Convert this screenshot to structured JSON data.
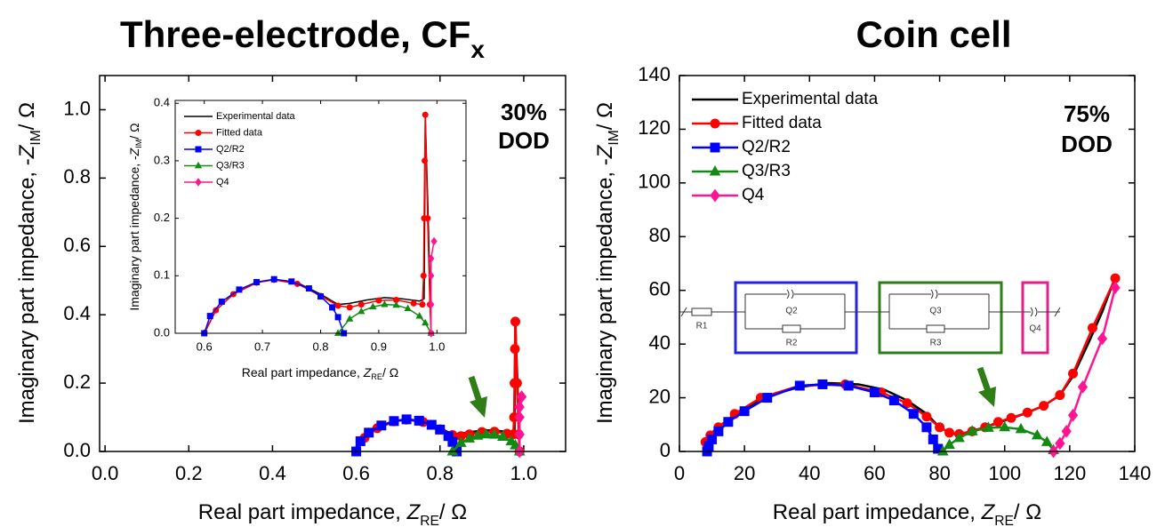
{
  "chart_data": [
    {
      "type": "line",
      "title": "Three-electrode, CF",
      "title_subscript": "x",
      "x_label": {
        "text": "Real part impedance, ",
        "symbol": "Z",
        "subscript": "RE",
        "unit": "/ Ω"
      },
      "y_label": {
        "text": "Imaginary part impedance, -",
        "symbol": "Z",
        "subscript": "IM",
        "unit": "/ Ω"
      },
      "annotation": [
        "30%",
        "DOD"
      ],
      "xlim": [
        -0.013,
        1.1
      ],
      "ylim": [
        0,
        1.1
      ],
      "xticks": [
        {
          "value": 0,
          "label": "0.0"
        },
        0.2,
        0.4,
        0.6,
        0.8,
        {
          "value": 1,
          "label": "1.0"
        }
      ],
      "yticks": [
        {
          "value": 0,
          "label": "0.0"
        },
        0.2,
        0.4,
        0.6,
        0.8,
        {
          "value": 1,
          "label": "1.0"
        }
      ],
      "series": [
        {
          "color": "#000000",
          "x": [
            0.6,
            0.62,
            0.65,
            0.69,
            0.72,
            0.76,
            0.8,
            0.83,
            0.85,
            0.88,
            0.91,
            0.94,
            0.97,
            0.978,
            0.979,
            0.98,
            0.985,
            0.99
          ],
          "values": [
            0,
            0.04,
            0.068,
            0.088,
            0.094,
            0.088,
            0.068,
            0.05,
            0.052,
            0.058,
            0.062,
            0.06,
            0.056,
            0.06,
            0.2,
            0.38,
            0.2,
            0
          ]
        },
        {
          "color": "#ff0000",
          "marker": "circle",
          "x": [
            0.6,
            0.62,
            0.65,
            0.69,
            0.72,
            0.76,
            0.8,
            0.83,
            0.85,
            0.87,
            0.9,
            0.93,
            0.96,
            0.975,
            0.977,
            0.978,
            0.979,
            0.98,
            0.984,
            0.988,
            0.99
          ],
          "values": [
            0,
            0.04,
            0.068,
            0.088,
            0.093,
            0.086,
            0.065,
            0.048,
            0.045,
            0.05,
            0.057,
            0.058,
            0.052,
            0.05,
            0.1,
            0.2,
            0.3,
            0.38,
            0.2,
            0.05,
            0
          ]
        },
        {
          "color": "#0000ff",
          "marker": "square",
          "x": [
            0.6,
            0.61,
            0.63,
            0.66,
            0.69,
            0.72,
            0.75,
            0.78,
            0.8,
            0.82,
            0.83,
            0.84
          ],
          "values": [
            0,
            0.03,
            0.055,
            0.076,
            0.089,
            0.094,
            0.09,
            0.078,
            0.064,
            0.045,
            0.028,
            0
          ]
        },
        {
          "color": "#138a13",
          "marker": "triangle",
          "x": [
            0.83,
            0.85,
            0.87,
            0.89,
            0.91,
            0.93,
            0.95,
            0.97,
            0.98,
            0.99
          ],
          "values": [
            0,
            0.025,
            0.038,
            0.046,
            0.05,
            0.049,
            0.043,
            0.03,
            0.018,
            0
          ]
        },
        {
          "color": "#ff1493",
          "marker": "diamond",
          "x": [
            0.99,
            0.99,
            0.99,
            0.99,
            0.995
          ],
          "values": [
            0,
            0.05,
            0.1,
            0.13,
            0.16
          ]
        }
      ]
    },
    {
      "type": "line",
      "x_label": {
        "text": "Real part impedance, ",
        "symbol": "Z",
        "subscript": "RE",
        "unit": "/ Ω"
      },
      "y_label": {
        "text": "Imaginary part impedance, -",
        "symbol": "Z",
        "subscript": "IM",
        "unit": "/ Ω"
      },
      "legend": "upper left",
      "xlim": [
        0.55,
        1.05
      ],
      "ylim": [
        0,
        0.405
      ],
      "xticks": [
        0.6,
        0.7,
        0.8,
        0.9,
        {
          "value": 1,
          "label": "1.0"
        }
      ],
      "yticks": [
        {
          "value": 0,
          "label": "0.0"
        },
        0.1,
        0.2,
        0.3,
        0.4
      ],
      "series": [
        {
          "name": "Experimental data",
          "color": "#000000",
          "x": [
            0.6,
            0.62,
            0.65,
            0.69,
            0.72,
            0.76,
            0.8,
            0.83,
            0.85,
            0.88,
            0.91,
            0.94,
            0.97,
            0.978,
            0.979,
            0.98,
            0.985,
            0.99
          ],
          "values": [
            0,
            0.04,
            0.068,
            0.088,
            0.094,
            0.088,
            0.068,
            0.05,
            0.052,
            0.058,
            0.062,
            0.06,
            0.056,
            0.06,
            0.2,
            0.38,
            0.2,
            0
          ]
        },
        {
          "name": "Fitted data",
          "color": "#ff0000",
          "marker": "circle",
          "x": [
            0.6,
            0.62,
            0.65,
            0.69,
            0.72,
            0.76,
            0.8,
            0.83,
            0.85,
            0.87,
            0.9,
            0.93,
            0.96,
            0.975,
            0.977,
            0.978,
            0.979,
            0.98,
            0.984,
            0.988,
            0.99
          ],
          "values": [
            0,
            0.04,
            0.068,
            0.088,
            0.093,
            0.086,
            0.065,
            0.048,
            0.045,
            0.05,
            0.057,
            0.058,
            0.052,
            0.05,
            0.1,
            0.2,
            0.3,
            0.38,
            0.2,
            0.05,
            0
          ]
        },
        {
          "name": "Q2/R2",
          "color": "#0000ff",
          "marker": "square",
          "x": [
            0.6,
            0.61,
            0.63,
            0.66,
            0.69,
            0.72,
            0.75,
            0.78,
            0.8,
            0.82,
            0.83,
            0.84
          ],
          "values": [
            0,
            0.03,
            0.055,
            0.076,
            0.089,
            0.094,
            0.09,
            0.078,
            0.064,
            0.045,
            0.028,
            0
          ]
        },
        {
          "name": "Q3/R3",
          "color": "#138a13",
          "marker": "triangle",
          "x": [
            0.83,
            0.85,
            0.87,
            0.89,
            0.91,
            0.93,
            0.95,
            0.97,
            0.98,
            0.99
          ],
          "values": [
            0,
            0.025,
            0.038,
            0.046,
            0.05,
            0.049,
            0.043,
            0.03,
            0.018,
            0
          ]
        },
        {
          "name": "Q4",
          "color": "#ff1493",
          "marker": "diamond",
          "x": [
            0.99,
            0.99,
            0.99,
            0.99,
            0.995
          ],
          "values": [
            0,
            0.05,
            0.1,
            0.13,
            0.16
          ]
        }
      ]
    },
    {
      "type": "line",
      "title": "Coin cell",
      "x_label": {
        "text": "Real part impedance, ",
        "symbol": "Z",
        "subscript": "RE",
        "unit": "/ Ω"
      },
      "y_label": {
        "text": "Imaginary part impedance, -",
        "symbol": "Z",
        "subscript": "IM",
        "unit": "/ Ω"
      },
      "annotation": [
        "75%",
        "DOD"
      ],
      "legend": "upper left",
      "circuit": [
        "R1",
        "Q2",
        "R2",
        "Q3",
        "R3",
        "Q4"
      ],
      "xlim": [
        0,
        140
      ],
      "ylim": [
        0,
        140
      ],
      "xticks": [
        0,
        20,
        40,
        60,
        80,
        100,
        120,
        140
      ],
      "yticks": [
        0,
        20,
        40,
        60,
        80,
        100,
        120,
        140
      ],
      "series": [
        {
          "name": "Experimental data",
          "color": "#000000",
          "x": [
            8,
            10,
            14,
            20,
            28,
            37,
            46,
            55,
            63,
            70,
            76,
            80,
            84,
            88,
            94,
            100,
            106,
            112,
            117,
            121,
            126,
            130,
            134
          ],
          "values": [
            4,
            7,
            11,
            16,
            21,
            24,
            25.5,
            25,
            23,
            19,
            14,
            9,
            6.5,
            7,
            9,
            11.5,
            14,
            17,
            21,
            28,
            41,
            52,
            65
          ]
        },
        {
          "name": "Fitted data",
          "color": "#ff0000",
          "marker": "circle",
          "x": [
            8,
            9.5,
            12,
            17,
            25,
            37,
            51,
            62,
            70,
            76,
            80,
            83,
            86,
            90,
            94,
            98,
            102,
            107,
            112,
            117,
            121,
            127,
            134
          ],
          "values": [
            3.5,
            6,
            9,
            14,
            20,
            24.5,
            25,
            22,
            18,
            13,
            9,
            7,
            6.5,
            7.5,
            9,
            11,
            12.5,
            14.5,
            17,
            21,
            29,
            46,
            64.5
          ]
        },
        {
          "name": "Q2/R2",
          "color": "#0000ff",
          "marker": "square",
          "x": [
            8.5,
            9,
            10,
            12,
            15,
            20,
            27,
            37,
            44,
            52,
            60,
            66,
            72,
            76,
            78,
            79.5
          ],
          "values": [
            0,
            2,
            4.5,
            7.5,
            11,
            15,
            20,
            24.5,
            25,
            24.5,
            22,
            19,
            14,
            9,
            4.5,
            1
          ]
        },
        {
          "name": "Q3/R3",
          "color": "#138a13",
          "marker": "triangle",
          "x": [
            81,
            83,
            86,
            90,
            95,
            100,
            105,
            110,
            113,
            115
          ],
          "values": [
            0,
            2.5,
            5,
            7.5,
            8.8,
            9,
            8.3,
            6,
            3.5,
            0.5
          ]
        },
        {
          "name": "Q4",
          "color": "#ff1493",
          "marker": "diamond",
          "x": [
            115,
            117,
            119,
            121,
            124,
            130,
            134
          ],
          "values": [
            0,
            3,
            7.5,
            13.5,
            24,
            42,
            61
          ]
        }
      ]
    }
  ]
}
